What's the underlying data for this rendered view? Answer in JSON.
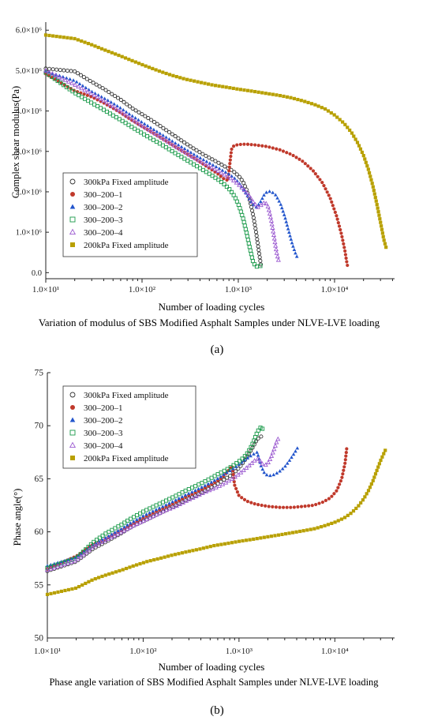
{
  "figure": {
    "panel_a_label": "(a)",
    "panel_b_label": "(b)"
  },
  "chart_data": [
    {
      "type": "scatter",
      "title": "Variation of modulus of SBS Modified Asphalt Samples under NLVE-LVE loading",
      "xlabel": "Number of loading cycles",
      "ylabel": "Complex shear modulus(Pa)",
      "x_scale": "log",
      "xlim": [
        10,
        42000
      ],
      "ylim": [
        -150000,
        6200000
      ],
      "x_ticks": [
        10,
        100,
        1000,
        10000
      ],
      "x_tick_labels": [
        "1.0×10¹",
        "1.0×10²",
        "1.0×10³",
        "1.0×10⁴"
      ],
      "y_ticks": [
        0,
        1000000,
        2000000,
        3000000,
        4000000,
        5000000,
        6000000
      ],
      "y_tick_labels": [
        "0.0",
        "1.0×10⁶",
        "2.0×10⁶",
        "3.0×10⁶",
        "4.0×10⁶",
        "5.0×10⁶",
        "6.0×10⁶"
      ],
      "grid": false,
      "legend_position": "bottom-left",
      "series": [
        {
          "name": "300kPa Fixed amplitude",
          "marker": "circle-open",
          "color": "#333333",
          "x": [
            10,
            20,
            30,
            40,
            50,
            60,
            70,
            80,
            100,
            130,
            170,
            220,
            280,
            350,
            430,
            520,
            620,
            720,
            820,
            920,
            1020,
            1120,
            1220,
            1320,
            1420,
            1520,
            1620,
            1720
          ],
          "y": [
            5050000,
            4980000,
            4720000,
            4550000,
            4400000,
            4280000,
            4160000,
            4060000,
            3920000,
            3750000,
            3560000,
            3380000,
            3210000,
            3060000,
            2930000,
            2820000,
            2720000,
            2630000,
            2560000,
            2480000,
            2380000,
            2250000,
            2050000,
            1780000,
            1450000,
            1050000,
            600000,
            180000
          ]
        },
        {
          "name": "300–200–1",
          "marker": "circle-filled",
          "color": "#c0392b",
          "x": [
            10,
            20,
            30,
            40,
            50,
            60,
            70,
            80,
            100,
            130,
            170,
            220,
            280,
            350,
            430,
            520,
            620,
            700,
            780,
            850,
            900,
            1000,
            1200,
            1500,
            2000,
            2700,
            3600,
            4700,
            6000,
            7500,
            9000,
            10500,
            11800,
            12800,
            13300,
            13600
          ],
          "y": [
            4920000,
            4500000,
            4350000,
            4200000,
            4070000,
            3960000,
            3850000,
            3760000,
            3620000,
            3460000,
            3290000,
            3120000,
            2970000,
            2830000,
            2690000,
            2560000,
            2440000,
            2330000,
            2280000,
            3050000,
            3140000,
            3170000,
            3180000,
            3160000,
            3120000,
            3040000,
            2920000,
            2750000,
            2520000,
            2220000,
            1850000,
            1400000,
            950000,
            550000,
            300000,
            180000
          ]
        },
        {
          "name": "300–200–2",
          "marker": "triangle-filled",
          "color": "#2255cc",
          "x": [
            10,
            20,
            30,
            40,
            50,
            60,
            70,
            80,
            100,
            130,
            170,
            220,
            280,
            350,
            430,
            520,
            620,
            720,
            820,
            920,
            1020,
            1120,
            1250,
            1400,
            1550,
            1700,
            1850,
            2000,
            2200,
            2450,
            2750,
            3050,
            3350,
            3650,
            3950,
            4150
          ],
          "y": [
            4980000,
            4750000,
            4480000,
            4320000,
            4190000,
            4070000,
            3960000,
            3870000,
            3720000,
            3550000,
            3380000,
            3210000,
            3060000,
            2920000,
            2800000,
            2690000,
            2590000,
            2500000,
            2420000,
            2330000,
            2220000,
            2080000,
            1900000,
            1700000,
            1620000,
            1750000,
            1920000,
            2010000,
            2010000,
            1920000,
            1700000,
            1380000,
            1020000,
            700000,
            460000,
            350000
          ]
        },
        {
          "name": "300–200–3",
          "marker": "square-open",
          "color": "#1a9a4a",
          "x": [
            10,
            20,
            30,
            40,
            50,
            60,
            70,
            80,
            100,
            130,
            170,
            220,
            280,
            350,
            430,
            520,
            620,
            720,
            820,
            920,
            1020,
            1120,
            1220,
            1320,
            1420,
            1520,
            1620,
            1720,
            1820
          ],
          "y": [
            4950000,
            4450000,
            4200000,
            4030000,
            3890000,
            3780000,
            3680000,
            3590000,
            3450000,
            3290000,
            3130000,
            2960000,
            2810000,
            2670000,
            2540000,
            2420000,
            2300000,
            2180000,
            2050000,
            1880000,
            1650000,
            1350000,
            980000,
            600000,
            280000,
            150000,
            150000,
            170000,
            170000
          ]
        },
        {
          "name": "300–200–4",
          "marker": "triangle-open",
          "color": "#9b59d0",
          "x": [
            10,
            20,
            30,
            40,
            50,
            60,
            70,
            80,
            100,
            130,
            170,
            220,
            280,
            350,
            430,
            520,
            620,
            720,
            820,
            920,
            1020,
            1150,
            1300,
            1450,
            1600,
            1750,
            1900,
            2050,
            2200,
            2350,
            2500,
            2650
          ],
          "y": [
            5000000,
            4650000,
            4420000,
            4250000,
            4110000,
            3990000,
            3880000,
            3790000,
            3640000,
            3470000,
            3300000,
            3130000,
            2980000,
            2840000,
            2720000,
            2610000,
            2510000,
            2420000,
            2340000,
            2260000,
            2170000,
            2050000,
            1900000,
            1720000,
            1620000,
            1680000,
            1750000,
            1620000,
            1300000,
            900000,
            500000,
            250000
          ]
        },
        {
          "name": "200kPa Fixed amplitude",
          "marker": "square-filled",
          "color": "#b8a000",
          "x": [
            10,
            20,
            30,
            40,
            60,
            80,
            110,
            150,
            200,
            280,
            400,
            550,
            750,
            1000,
            1400,
            1900,
            2600,
            3500,
            4700,
            6200,
            8000,
            10000,
            12500,
            15000,
            17500,
            20000,
            22500,
            25000,
            27500,
            30000,
            32500,
            34500
          ],
          "y": [
            5880000,
            5790000,
            5640000,
            5520000,
            5360000,
            5240000,
            5110000,
            4990000,
            4890000,
            4790000,
            4710000,
            4640000,
            4590000,
            4540000,
            4490000,
            4440000,
            4390000,
            4330000,
            4250000,
            4160000,
            4050000,
            3900000,
            3700000,
            3470000,
            3200000,
            2900000,
            2550000,
            2150000,
            1700000,
            1250000,
            820000,
            600000
          ]
        }
      ]
    },
    {
      "type": "scatter",
      "title": "Phase angle variation of SBS Modified Asphalt Samples under NLVE-LVE loading",
      "xlabel": "Number of loading cycles",
      "ylabel": "Phase angle(°)",
      "x_scale": "log",
      "xlim": [
        10,
        42000
      ],
      "ylim": [
        50,
        75
      ],
      "x_ticks": [
        10,
        100,
        1000,
        10000
      ],
      "x_tick_labels": [
        "1.0×10¹",
        "1.0×10²",
        "1.0×10³",
        "1.0×10⁴"
      ],
      "y_ticks": [
        50,
        55,
        60,
        65,
        70,
        75
      ],
      "y_tick_labels": [
        "50",
        "55",
        "60",
        "65",
        "70",
        "75"
      ],
      "grid": false,
      "legend_position": "top-left",
      "series": [
        {
          "name": "300kPa Fixed amplitude",
          "marker": "circle-open",
          "color": "#333333",
          "x": [
            10,
            20,
            30,
            40,
            50,
            60,
            70,
            80,
            100,
            130,
            170,
            220,
            280,
            350,
            430,
            520,
            620,
            720,
            820,
            920,
            1020,
            1120,
            1220,
            1320,
            1420,
            1520,
            1620,
            1720,
            1800
          ],
          "y": [
            56.3,
            57.2,
            58.4,
            59.0,
            59.5,
            59.9,
            60.3,
            60.6,
            61.0,
            61.5,
            62.0,
            62.5,
            63.0,
            63.4,
            63.8,
            64.2,
            64.6,
            65.0,
            65.3,
            65.7,
            66.1,
            66.6,
            67.1,
            67.6,
            68.1,
            68.6,
            68.9,
            69.0,
            68.8
          ]
        },
        {
          "name": "300–200–1",
          "marker": "circle-filled",
          "color": "#c0392b",
          "x": [
            10,
            20,
            30,
            40,
            50,
            60,
            70,
            80,
            100,
            130,
            170,
            220,
            280,
            350,
            430,
            520,
            620,
            700,
            780,
            850,
            900,
            1000,
            1200,
            1500,
            2000,
            2700,
            3600,
            4700,
            6000,
            7500,
            9000,
            10500,
            11800,
            12800,
            13400
          ],
          "y": [
            56.5,
            57.7,
            58.8,
            59.3,
            59.8,
            60.2,
            60.5,
            60.8,
            61.3,
            61.8,
            62.3,
            62.8,
            63.3,
            63.7,
            64.1,
            64.5,
            64.9,
            65.3,
            65.8,
            66.2,
            64.4,
            63.4,
            62.9,
            62.6,
            62.4,
            62.3,
            62.3,
            62.4,
            62.5,
            62.8,
            63.2,
            63.9,
            65.0,
            66.5,
            68.1
          ]
        },
        {
          "name": "300–200–2",
          "marker": "triangle-filled",
          "color": "#2255cc",
          "x": [
            10,
            20,
            30,
            40,
            50,
            60,
            70,
            80,
            100,
            130,
            170,
            220,
            280,
            350,
            430,
            520,
            620,
            720,
            820,
            920,
            1020,
            1120,
            1250,
            1400,
            1550,
            1700,
            1850,
            2000,
            2200,
            2450,
            2750,
            3050,
            3350,
            3650,
            3950,
            4200
          ],
          "y": [
            56.8,
            57.6,
            58.8,
            59.4,
            59.9,
            60.3,
            60.7,
            61.0,
            61.5,
            62.0,
            62.5,
            63.0,
            63.5,
            63.9,
            64.3,
            64.7,
            65.1,
            65.5,
            65.8,
            66.1,
            66.4,
            66.7,
            67.0,
            67.3,
            67.5,
            66.2,
            65.5,
            65.3,
            65.3,
            65.5,
            65.8,
            66.2,
            66.7,
            67.2,
            67.7,
            68.1
          ]
        },
        {
          "name": "300–200–3",
          "marker": "square-open",
          "color": "#1a9a4a",
          "x": [
            10,
            20,
            30,
            40,
            50,
            60,
            70,
            80,
            100,
            130,
            170,
            220,
            280,
            350,
            430,
            520,
            620,
            720,
            820,
            920,
            1020,
            1120,
            1220,
            1320,
            1420,
            1520,
            1620,
            1720,
            1800
          ],
          "y": [
            56.6,
            57.5,
            59.0,
            59.8,
            60.3,
            60.7,
            61.1,
            61.4,
            61.9,
            62.4,
            62.9,
            63.4,
            63.9,
            64.3,
            64.7,
            65.1,
            65.5,
            65.8,
            66.1,
            66.4,
            66.7,
            67.0,
            67.4,
            67.9,
            68.5,
            69.2,
            69.7,
            69.9,
            69.5
          ]
        },
        {
          "name": "300–200–4",
          "marker": "triangle-open",
          "color": "#9b59d0",
          "x": [
            10,
            20,
            30,
            40,
            50,
            60,
            70,
            80,
            100,
            130,
            170,
            220,
            280,
            350,
            430,
            520,
            620,
            720,
            820,
            920,
            1020,
            1150,
            1300,
            1450,
            1600,
            1750,
            1900,
            2050,
            2200,
            2350,
            2500,
            2650
          ],
          "y": [
            56.4,
            57.3,
            58.6,
            59.2,
            59.6,
            60.0,
            60.3,
            60.6,
            61.0,
            61.5,
            62.0,
            62.4,
            62.9,
            63.3,
            63.7,
            64.0,
            64.3,
            64.6,
            64.9,
            65.2,
            65.5,
            65.9,
            66.3,
            66.7,
            66.9,
            66.4,
            66.3,
            66.6,
            67.2,
            67.9,
            68.6,
            69.0
          ]
        },
        {
          "name": "200kPa Fixed amplitude",
          "marker": "square-filled",
          "color": "#b8a000",
          "x": [
            10,
            20,
            30,
            40,
            60,
            80,
            110,
            150,
            200,
            280,
            400,
            550,
            750,
            1000,
            1400,
            1900,
            2600,
            3500,
            4700,
            6200,
            8000,
            10000,
            12500,
            15000,
            17500,
            20000,
            22500,
            25000,
            27500,
            30000,
            32500,
            34500
          ],
          "y": [
            54.1,
            54.7,
            55.5,
            55.9,
            56.4,
            56.8,
            57.2,
            57.5,
            57.8,
            58.1,
            58.4,
            58.7,
            58.9,
            59.1,
            59.3,
            59.5,
            59.7,
            59.9,
            60.1,
            60.3,
            60.6,
            60.9,
            61.3,
            61.8,
            62.4,
            63.1,
            63.9,
            64.8,
            65.8,
            66.7,
            67.4,
            67.9
          ]
        }
      ]
    }
  ]
}
